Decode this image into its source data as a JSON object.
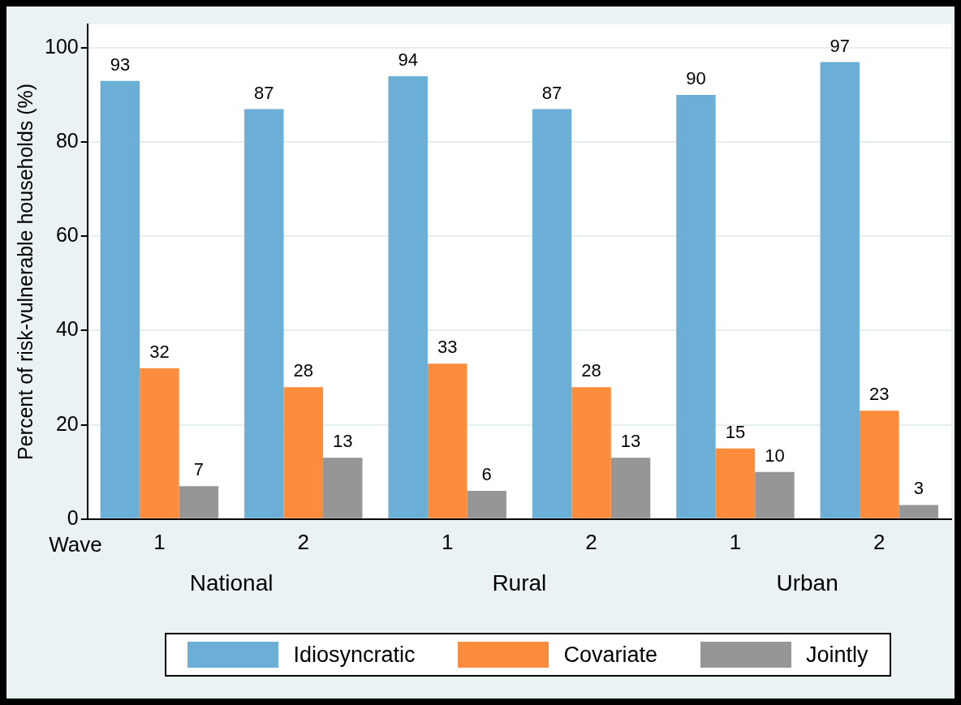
{
  "chart_data": {
    "type": "bar",
    "ylabel": "Percent of risk-vulnerable households (%)",
    "xlabel": "Wave",
    "categories": [
      "1",
      "2",
      "1",
      "2",
      "1",
      "2"
    ],
    "series": [
      {
        "name": "Idiosyncratic",
        "color": "#6baed6",
        "values": [
          93,
          87,
          94,
          87,
          90,
          97
        ]
      },
      {
        "name": "Covariate",
        "color": "#fd8d3c",
        "values": [
          32,
          28,
          33,
          28,
          15,
          23
        ]
      },
      {
        "name": "Jointly",
        "color": "#969696",
        "values": [
          7,
          13,
          6,
          13,
          10,
          3
        ]
      }
    ],
    "annotations": [
      "National",
      "Rural",
      "Urban"
    ],
    "ylim": [
      0,
      105
    ],
    "yticks": [
      0,
      20,
      40,
      60,
      80,
      100
    ],
    "grid": "y",
    "legend": "bottom",
    "data_labels": true
  }
}
